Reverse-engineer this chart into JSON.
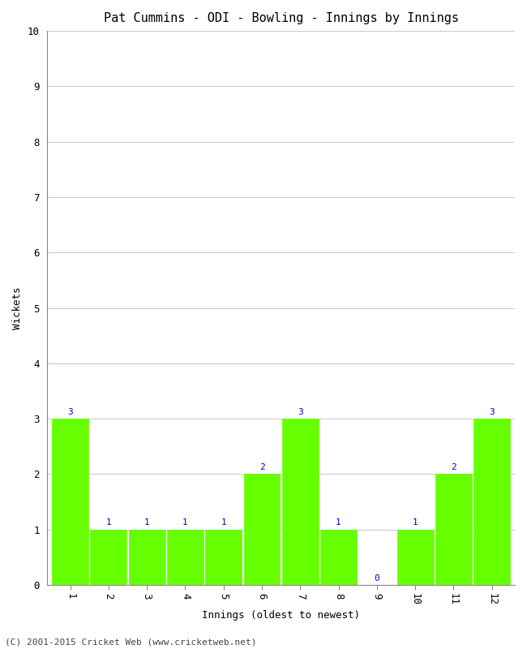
{
  "title": "Pat Cummins - ODI - Bowling - Innings by Innings",
  "xlabel": "Innings (oldest to newest)",
  "ylabel": "Wickets",
  "innings": [
    1,
    2,
    3,
    4,
    5,
    6,
    7,
    8,
    9,
    10,
    11,
    12
  ],
  "wickets": [
    3,
    1,
    1,
    1,
    1,
    2,
    3,
    1,
    0,
    1,
    2,
    3
  ],
  "bar_color": "#66ff00",
  "bar_edge_color": "#66ff00",
  "label_color": "#0000cc",
  "ylim": [
    0,
    10
  ],
  "yticks": [
    0,
    1,
    2,
    3,
    4,
    5,
    6,
    7,
    8,
    9,
    10
  ],
  "background_color": "#ffffff",
  "grid_color": "#cccccc",
  "title_fontsize": 11,
  "axis_label_fontsize": 9,
  "tick_fontsize": 9,
  "value_label_fontsize": 8,
  "footer_text": "(C) 2001-2015 Cricket Web (www.cricketweb.net)",
  "footer_fontsize": 8,
  "xtick_rotation": 270
}
